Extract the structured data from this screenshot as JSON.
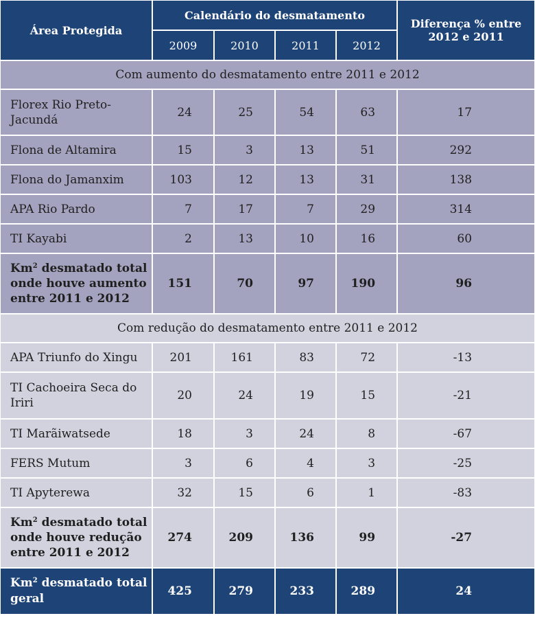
{
  "header": {
    "area_label": "Área Protegida",
    "calendar_label": "Calendário do desmatamento",
    "diff_label_line1": "Diferença % entre",
    "diff_label_line2": "2012 e 2011",
    "years": [
      "2009",
      "2010",
      "2011",
      "2012"
    ]
  },
  "increase_section": {
    "title": "Com aumento do desmatamento entre 2011 e 2012",
    "rows": [
      {
        "name_line1": "Florex  Rio Preto-",
        "name_line2": "Jacundá",
        "values": [
          "24",
          "25",
          "54",
          "63"
        ],
        "diff": "17"
      },
      {
        "name_line1": "Flona de Altamira",
        "name_line2": "",
        "values": [
          "15",
          "3",
          "13",
          "51"
        ],
        "diff": "292"
      },
      {
        "name_line1": "Flona do Jamanxim",
        "name_line2": "",
        "values": [
          "103",
          "12",
          "13",
          "31"
        ],
        "diff": "138"
      },
      {
        "name_line1": "APA  Rio Pardo",
        "name_line2": "",
        "values": [
          "7",
          "17",
          "7",
          "29"
        ],
        "diff": "314"
      },
      {
        "name_line1": "TI Kayabi",
        "name_line2": "",
        "values": [
          "2",
          "13",
          "10",
          "16"
        ],
        "diff": "60"
      }
    ],
    "subtotal": {
      "label_prefix": "Km",
      "label_sup": "2",
      "label_line1_rest": " desmatado total",
      "label_line2": "onde houve aumento",
      "label_line3": "entre 2011 e 2012",
      "values": [
        "151",
        "70",
        "97",
        "190"
      ],
      "diff": "96"
    }
  },
  "decrease_section": {
    "title": "Com redução do desmatamento entre 2011 e 2012",
    "rows": [
      {
        "name_line1": "APA Triunfo do Xingu",
        "name_line2": "",
        "values": [
          "201",
          "161",
          "83",
          "72"
        ],
        "diff": "-13"
      },
      {
        "name_line1": "TI Cachoeira Seca do",
        "name_line2": "Iriri",
        "values": [
          "20",
          "24",
          "19",
          "15"
        ],
        "diff": "-21"
      },
      {
        "name_line1": "TI Marãiwatsede",
        "name_line2": "",
        "values": [
          "18",
          "3",
          "24",
          "8"
        ],
        "diff": "-67"
      },
      {
        "name_line1": "FERS  Mutum",
        "name_line2": "",
        "values": [
          "3",
          "6",
          "4",
          "3"
        ],
        "diff": "-25"
      },
      {
        "name_line1": "TI Apyterewa",
        "name_line2": "",
        "values": [
          "32",
          "15",
          "6",
          "1"
        ],
        "diff": "-83"
      }
    ],
    "subtotal": {
      "label_prefix": "Km",
      "label_sup": "2",
      "label_line1_rest": " desmatado total",
      "label_line2": "onde houve redução",
      "label_line3": "entre 2011 e 2012",
      "values": [
        "274",
        "209",
        "136",
        "99"
      ],
      "diff": "-27"
    }
  },
  "grand_total": {
    "label_prefix": "Km",
    "label_sup": "2",
    "label_line1_rest": " desmatado total",
    "label_line2": "geral",
    "values": [
      "425",
      "279",
      "233",
      "289"
    ],
    "diff": "24"
  },
  "colors": {
    "header_bg": "#1e4477",
    "increase_bg": "#a3a3bf",
    "decrease_bg": "#d2d2df"
  }
}
